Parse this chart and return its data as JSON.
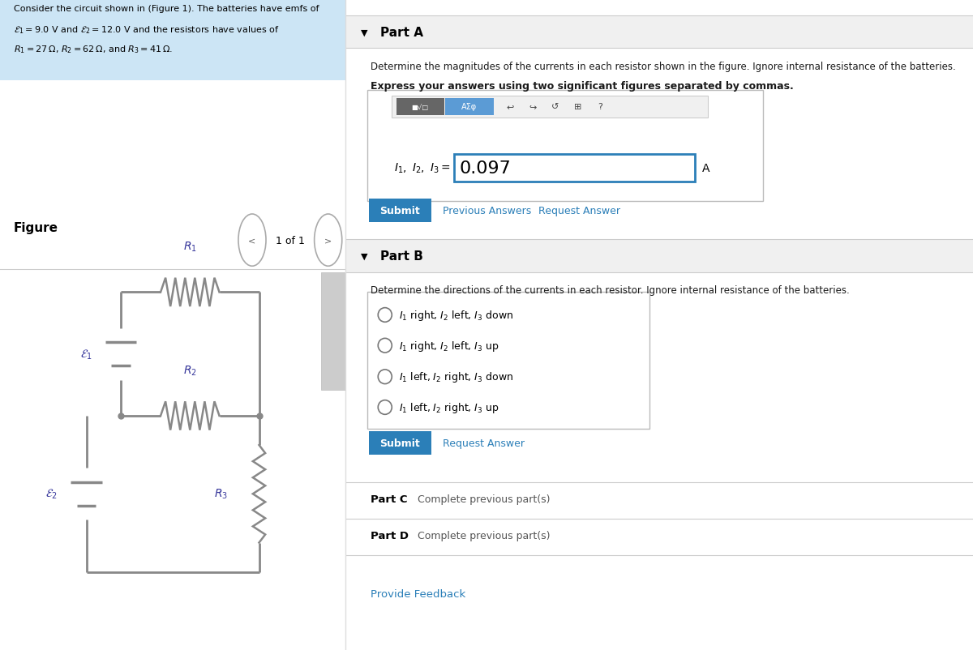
{
  "bg_color": "#ffffff",
  "left_panel_bg": "#cce5f5",
  "figure_label": "Figure",
  "nav_text": "1 of 1",
  "part_a_header": "Part A",
  "part_a_question": "Determine the magnitudes of the currents in each resistor shown in the figure. Ignore internal resistance of the batteries.",
  "part_a_express": "Express your answers using two significant figures separated by commas.",
  "part_a_answer": "0.097",
  "part_a_unit": "A",
  "submit_color": "#2b7fb8",
  "submit_text": "Submit",
  "prev_answers_text": "Previous Answers",
  "request_answer_text": "Request Answer",
  "part_b_header": "Part B",
  "part_b_question": "Determine the directions of the currents in each resistor. Ignore internal resistance of the batteries.",
  "radio_options": [
    "$I_1$ right, $I_2$ left, $I_3$ down",
    "$I_1$ right, $I_2$ left, $I_3$ up",
    "$I_1$ left, $I_2$ right, $I_3$ down",
    "$I_1$ left, $I_2$ right, $I_3$ up"
  ],
  "provide_feedback": "Provide Feedback",
  "divider_color": "#cccccc",
  "link_color": "#2b7fb8",
  "header_bg": "#eeeeee",
  "input_border_color": "#2b7fb8",
  "circuit_color": "#888888",
  "panel_split": 0.355
}
